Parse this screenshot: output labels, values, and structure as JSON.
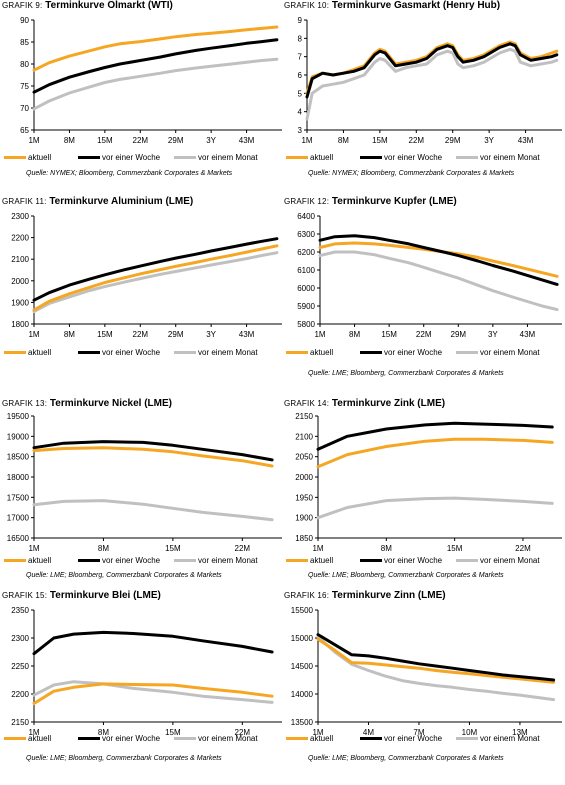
{
  "colors": {
    "aktuell": "#f5a623",
    "woche": "#000000",
    "monat": "#c0c0c0"
  },
  "charts": [
    {
      "title_prefix": "GRAFIK 9:",
      "title_text": "Terminkurve Ölmarkt (WTI)",
      "source": "Quelle: NYMEX; Bloomberg, Commerzbank Corporates & Markets",
      "legend": [
        "aktuell",
        "vor einer Woche",
        "vor einem Monat"
      ]
    },
    {
      "title_prefix": "GRAFIK 10:",
      "title_text": "Terminkurve Gasmarkt (Henry Hub)",
      "source": "Quelle: NYMEX; Bloomberg, Commerzbank Corporates & Markets",
      "legend": [
        "aktuell",
        "vor einer Woche",
        "vor einem Monat"
      ]
    },
    {
      "title_prefix": "GRAFIK 11:",
      "title_text": "Terminkurve Aluminium (LME)",
      "source": "",
      "legend": [
        "aktuell",
        "vor einer Woche",
        "vor einem Monat"
      ]
    },
    {
      "title_prefix": "GRAFIK 12:",
      "title_text": "Terminkurve Kupfer (LME)",
      "source": "Quelle: LME; Bloomberg, Commerzbank Corporates & Markets",
      "legend": [
        "aktuell",
        "vor einer Woche",
        "vor einem Monat"
      ]
    },
    {
      "title_prefix": "GRAFIK 13:",
      "title_text": "Terminkurve Nickel (LME)",
      "source": "Quelle: LME; Bloomberg, Commerzbank Corporates & Markets",
      "legend": [
        "aktuell",
        "vor einer Woche",
        "vor einem Monat"
      ]
    },
    {
      "title_prefix": "GRAFIK 14:",
      "title_text": "Terminkurve Zink (LME)",
      "source": "Quelle: LME; Bloomberg, Commerzbank Corporates & Markets",
      "legend": [
        "aktuell",
        "vor einer Woche",
        "vor einem Monat"
      ]
    },
    {
      "title_prefix": "GRAFIK 15:",
      "title_text": "Terminkurve Blei (LME)",
      "source": "Quelle: LME; Bloomberg, Commerzbank Corporates & Markets",
      "legend": [
        "aktuell",
        "vor einer Woche",
        "vor einem Monat"
      ]
    },
    {
      "title_prefix": "GRAFIK 16:",
      "title_text": "Terminkurve Zinn (LME)",
      "source": "Quelle: LME; Bloomberg, Commerzbank Corporates & Markets",
      "legend": [
        "aktuell",
        "vor einer Woche",
        "vor einem Monat"
      ]
    }
  ],
  "chart_data": [
    {
      "type": "line",
      "title": "Terminkurve Ölmarkt (WTI)",
      "x": [
        1,
        4,
        8,
        12,
        15,
        18,
        22,
        26,
        29,
        33,
        36,
        40,
        43,
        46,
        49
      ],
      "x_ticks": [
        1,
        8,
        15,
        22,
        29,
        36,
        43
      ],
      "x_tick_labels": [
        "1M",
        "8M",
        "15M",
        "22M",
        "29M",
        "3Y",
        "43M"
      ],
      "xlim": [
        1,
        50
      ],
      "ylim": [
        65,
        90
      ],
      "y_ticks": [
        65,
        70,
        75,
        80,
        85,
        90
      ],
      "grid": false,
      "series": [
        {
          "name": "aktuell",
          "values": [
            78.6,
            80.3,
            81.8,
            83.0,
            83.9,
            84.6,
            85.1,
            85.7,
            86.2,
            86.7,
            87.0,
            87.4,
            87.8,
            88.1,
            88.4
          ]
        },
        {
          "name": "vor einer Woche",
          "values": [
            73.6,
            75.3,
            77.0,
            78.3,
            79.2,
            80.0,
            80.8,
            81.6,
            82.3,
            83.1,
            83.6,
            84.2,
            84.7,
            85.1,
            85.5
          ]
        },
        {
          "name": "vor einem Monat",
          "values": [
            69.8,
            71.6,
            73.4,
            74.8,
            75.8,
            76.5,
            77.2,
            77.9,
            78.5,
            79.1,
            79.5,
            80.0,
            80.4,
            80.8,
            81.1
          ]
        }
      ]
    },
    {
      "type": "line",
      "title": "Terminkurve Gasmarkt (Henry Hub)",
      "x": [
        1,
        2,
        4,
        6,
        8,
        10,
        12,
        14,
        15,
        16,
        18,
        20,
        22,
        24,
        26,
        28,
        29,
        30,
        31,
        33,
        35,
        38,
        40,
        41,
        42,
        44,
        46,
        48,
        49
      ],
      "x_ticks": [
        1,
        8,
        15,
        22,
        29,
        36,
        43
      ],
      "x_tick_labels": [
        "1M",
        "8M",
        "15M",
        "22M",
        "29M",
        "3Y",
        "43M"
      ],
      "xlim": [
        1,
        50
      ],
      "ylim": [
        3,
        9
      ],
      "y_ticks": [
        3,
        4,
        5,
        6,
        7,
        8,
        9
      ],
      "grid": false,
      "series": [
        {
          "name": "aktuell",
          "values": [
            5.0,
            5.9,
            6.1,
            6.0,
            6.1,
            6.3,
            6.5,
            7.2,
            7.4,
            7.3,
            6.6,
            6.7,
            6.8,
            7.0,
            7.5,
            7.7,
            7.6,
            7.1,
            6.8,
            6.9,
            7.1,
            7.6,
            7.8,
            7.7,
            7.2,
            6.9,
            7.0,
            7.2,
            7.3
          ]
        },
        {
          "name": "vor einer Woche",
          "values": [
            4.8,
            5.8,
            6.1,
            6.0,
            6.1,
            6.2,
            6.4,
            7.1,
            7.3,
            7.2,
            6.5,
            6.6,
            6.7,
            6.9,
            7.4,
            7.6,
            7.5,
            7.0,
            6.7,
            6.8,
            7.0,
            7.5,
            7.7,
            7.6,
            7.1,
            6.8,
            6.9,
            7.0,
            7.1
          ]
        },
        {
          "name": "vor einem Monat",
          "values": [
            3.6,
            5.0,
            5.4,
            5.5,
            5.6,
            5.8,
            6.0,
            6.7,
            6.9,
            6.8,
            6.2,
            6.4,
            6.5,
            6.6,
            7.1,
            7.3,
            7.2,
            6.6,
            6.4,
            6.5,
            6.7,
            7.2,
            7.4,
            7.3,
            6.7,
            6.5,
            6.6,
            6.7,
            6.8
          ]
        }
      ]
    },
    {
      "type": "line",
      "title": "Terminkurve Aluminium (LME)",
      "x": [
        1,
        4,
        8,
        12,
        15,
        19,
        22,
        26,
        29,
        33,
        36,
        40,
        43,
        46,
        49
      ],
      "x_ticks": [
        1,
        8,
        15,
        22,
        29,
        36,
        43
      ],
      "x_tick_labels": [
        "1M",
        "8M",
        "15M",
        "22M",
        "29M",
        "3Y",
        "43M"
      ],
      "xlim": [
        1,
        50
      ],
      "ylim": [
        1800,
        2300
      ],
      "y_ticks": [
        1800,
        1900,
        2000,
        2100,
        2200,
        2300
      ],
      "grid": false,
      "series": [
        {
          "name": "aktuell",
          "values": [
            1865,
            1905,
            1940,
            1970,
            1992,
            2015,
            2032,
            2052,
            2067,
            2085,
            2100,
            2118,
            2133,
            2147,
            2162
          ]
        },
        {
          "name": "vor einer Woche",
          "values": [
            1910,
            1945,
            1980,
            2008,
            2028,
            2052,
            2068,
            2090,
            2105,
            2123,
            2138,
            2156,
            2170,
            2183,
            2195
          ]
        },
        {
          "name": "vor einem Monat",
          "values": [
            1858,
            1895,
            1925,
            1955,
            1973,
            1995,
            2010,
            2030,
            2043,
            2060,
            2073,
            2090,
            2103,
            2117,
            2130
          ]
        }
      ]
    },
    {
      "type": "line",
      "title": "Terminkurve Kupfer (LME)",
      "x": [
        1,
        4,
        8,
        12,
        15,
        19,
        22,
        26,
        29,
        33,
        36,
        40,
        43,
        46,
        49
      ],
      "x_ticks": [
        1,
        8,
        15,
        22,
        29,
        36,
        43
      ],
      "x_tick_labels": [
        "1M",
        "8M",
        "15M",
        "22M",
        "29M",
        "3Y",
        "43M"
      ],
      "xlim": [
        1,
        50
      ],
      "ylim": [
        5800,
        6400
      ],
      "y_ticks": [
        5800,
        5900,
        6000,
        6100,
        6200,
        6300,
        6400
      ],
      "grid": false,
      "series": [
        {
          "name": "aktuell",
          "values": [
            6225,
            6245,
            6250,
            6245,
            6237,
            6225,
            6215,
            6200,
            6190,
            6170,
            6150,
            6125,
            6105,
            6085,
            6065
          ]
        },
        {
          "name": "vor einer Woche",
          "values": [
            6265,
            6285,
            6290,
            6280,
            6265,
            6245,
            6225,
            6200,
            6180,
            6150,
            6125,
            6095,
            6070,
            6045,
            6020
          ]
        },
        {
          "name": "vor einem Monat",
          "values": [
            6180,
            6200,
            6200,
            6185,
            6165,
            6140,
            6115,
            6080,
            6055,
            6015,
            5985,
            5950,
            5925,
            5900,
            5880
          ]
        }
      ]
    },
    {
      "type": "line",
      "title": "Terminkurve Nickel (LME)",
      "x": [
        1,
        4,
        8,
        12,
        15,
        18,
        22,
        25
      ],
      "x_ticks": [
        1,
        8,
        15,
        22
      ],
      "x_tick_labels": [
        "1M",
        "8M",
        "15M",
        "22M"
      ],
      "xlim": [
        1,
        26
      ],
      "ylim": [
        16500,
        19500
      ],
      "y_ticks": [
        16500,
        17000,
        17500,
        18000,
        18500,
        19000,
        19500
      ],
      "grid": false,
      "series": [
        {
          "name": "aktuell",
          "values": [
            18650,
            18700,
            18720,
            18680,
            18620,
            18520,
            18400,
            18270
          ]
        },
        {
          "name": "vor einer Woche",
          "values": [
            18720,
            18830,
            18870,
            18850,
            18780,
            18680,
            18550,
            18420
          ]
        },
        {
          "name": "vor einem Monat",
          "values": [
            17320,
            17400,
            17420,
            17330,
            17230,
            17130,
            17030,
            16950
          ]
        }
      ]
    },
    {
      "type": "line",
      "title": "Terminkurve Zink (LME)",
      "x": [
        1,
        4,
        8,
        12,
        15,
        18,
        22,
        25
      ],
      "x_ticks": [
        1,
        8,
        15,
        22
      ],
      "x_tick_labels": [
        "1M",
        "8M",
        "15M",
        "22M"
      ],
      "xlim": [
        1,
        26
      ],
      "ylim": [
        1850,
        2150
      ],
      "y_ticks": [
        1850,
        1900,
        1950,
        2000,
        2050,
        2100,
        2150
      ],
      "grid": false,
      "series": [
        {
          "name": "aktuell",
          "values": [
            2025,
            2055,
            2075,
            2088,
            2093,
            2093,
            2090,
            2085
          ]
        },
        {
          "name": "vor einer Woche",
          "values": [
            2068,
            2100,
            2118,
            2128,
            2132,
            2130,
            2127,
            2123
          ]
        },
        {
          "name": "vor einem Monat",
          "values": [
            1900,
            1925,
            1942,
            1947,
            1948,
            1945,
            1940,
            1935
          ]
        }
      ]
    },
    {
      "type": "line",
      "title": "Terminkurve Blei (LME)",
      "x": [
        1,
        3,
        5,
        8,
        11,
        15,
        18,
        22,
        25
      ],
      "x_ticks": [
        1,
        8,
        15,
        22
      ],
      "x_tick_labels": [
        "1M",
        "8M",
        "15M",
        "22M"
      ],
      "xlim": [
        1,
        26
      ],
      "ylim": [
        2150,
        2350
      ],
      "y_ticks": [
        2150,
        2200,
        2250,
        2300,
        2350
      ],
      "grid": false,
      "series": [
        {
          "name": "aktuell",
          "values": [
            2183,
            2205,
            2212,
            2218,
            2217,
            2216,
            2210,
            2203,
            2196
          ]
        },
        {
          "name": "vor einer Woche",
          "values": [
            2272,
            2300,
            2307,
            2310,
            2308,
            2303,
            2295,
            2285,
            2275
          ]
        },
        {
          "name": "vor einem Monat",
          "values": [
            2198,
            2216,
            2222,
            2218,
            2210,
            2203,
            2196,
            2190,
            2185
          ]
        }
      ]
    },
    {
      "type": "line",
      "title": "Terminkurve Zinn (LME)",
      "x": [
        1,
        2,
        3,
        4,
        5,
        6,
        7,
        8,
        9,
        10,
        11,
        12,
        13,
        14,
        15
      ],
      "x_ticks": [
        1,
        4,
        7,
        10,
        13
      ],
      "x_tick_labels": [
        "1M",
        "4M",
        "7M",
        "10M",
        "13M"
      ],
      "xlim": [
        1,
        15.5
      ],
      "ylim": [
        13500,
        15500
      ],
      "y_ticks": [
        13500,
        14000,
        14500,
        15000,
        15500
      ],
      "grid": false,
      "series": [
        {
          "name": "aktuell",
          "values": [
            14980,
            14780,
            14560,
            14550,
            14520,
            14490,
            14460,
            14420,
            14390,
            14360,
            14330,
            14300,
            14270,
            14240,
            14210
          ]
        },
        {
          "name": "vor einer Woche",
          "values": [
            15060,
            14880,
            14700,
            14680,
            14640,
            14590,
            14540,
            14500,
            14460,
            14420,
            14380,
            14340,
            14310,
            14280,
            14250
          ]
        },
        {
          "name": "vor einem Monat",
          "values": [
            15020,
            14750,
            14530,
            14420,
            14320,
            14240,
            14190,
            14150,
            14120,
            14080,
            14050,
            14010,
            13980,
            13940,
            13900
          ]
        }
      ]
    }
  ]
}
